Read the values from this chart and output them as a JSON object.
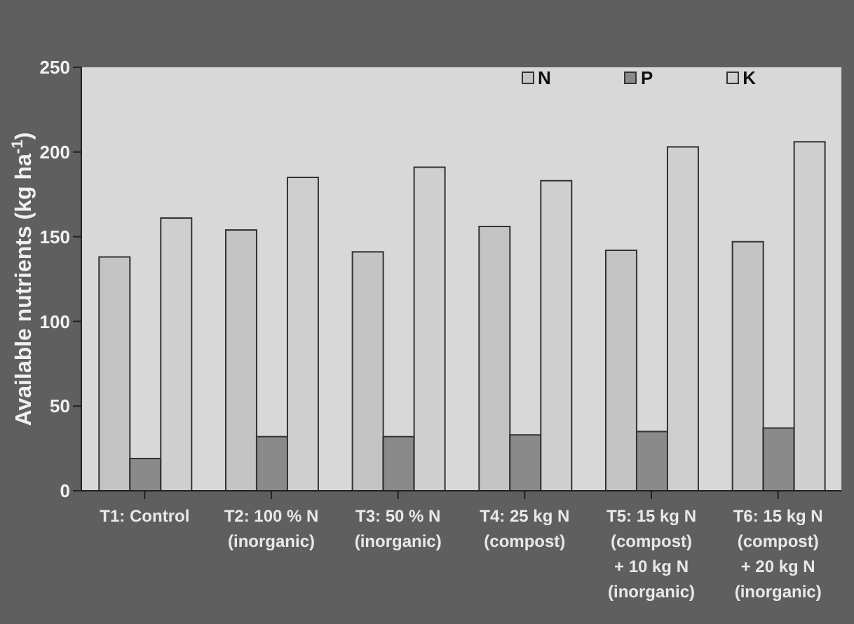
{
  "chart_data": {
    "type": "bar",
    "ylabel": "Available nutrients (kg ha$^{-1}$)",
    "categories": [
      "T1: Control",
      "T2: 100 % N\n(inorganic)",
      "T3: 50 % N\n(inorganic)",
      "T4: 25 kg N\n(compost)",
      "T5: 15 kg N\n(compost)\n+ 10 kg N\n(inorganic)",
      "T6: 15 kg N\n(compost)\n+ 20 kg N\n(inorganic)"
    ],
    "series": [
      {
        "name": "N",
        "color": "#c4c4c4",
        "values": [
          138,
          154,
          141,
          156,
          142,
          147
        ]
      },
      {
        "name": "P",
        "color": "#8a8a8a",
        "values": [
          19,
          32,
          32,
          33,
          35,
          37
        ]
      },
      {
        "name": "K",
        "color": "#cfcfcf",
        "values": [
          161,
          185,
          191,
          183,
          203,
          206
        ]
      }
    ],
    "ylim": [
      0,
      250
    ],
    "yticks": [
      0,
      50,
      100,
      150,
      200,
      250
    ],
    "grid": false,
    "legend": "top right"
  }
}
